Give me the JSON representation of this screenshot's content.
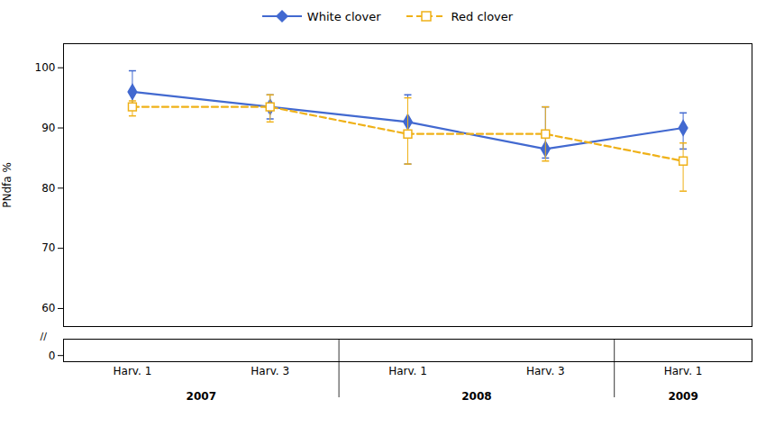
{
  "chart_data": {
    "type": "line",
    "ylabel": "PNdfa %",
    "categories": [
      "Harv. 1",
      "Harv. 3",
      "Harv. 1",
      "Harv. 3",
      "Harv. 1"
    ],
    "groups": [
      "2007",
      "2007",
      "2008",
      "2008",
      "2009"
    ],
    "series": [
      {
        "name": "White clover",
        "values": [
          96.0,
          93.5,
          91.0,
          86.5,
          90.0
        ],
        "error_upper": [
          3.5,
          2.0,
          4.5,
          7.0,
          2.5
        ],
        "error_lower": [
          2.0,
          2.0,
          7.0,
          1.5,
          3.5
        ],
        "marker": "diamond",
        "line_style": "solid"
      },
      {
        "name": "Red clover",
        "values": [
          93.5,
          93.5,
          89.0,
          89.0,
          84.5
        ],
        "error_upper": [
          1.0,
          2.0,
          6.0,
          4.5,
          3.0
        ],
        "error_lower": [
          1.5,
          2.5,
          5.0,
          4.5,
          5.0
        ],
        "marker": "square",
        "line_style": "dashed"
      }
    ],
    "ylim": [
      57,
      104
    ],
    "yticks": [
      60,
      70,
      80,
      90,
      100
    ],
    "ylim_bottom": [
      -1.5,
      4
    ],
    "yticks_bottom": [
      0
    ],
    "axis_break": "//",
    "grid": false,
    "legend": "top"
  }
}
